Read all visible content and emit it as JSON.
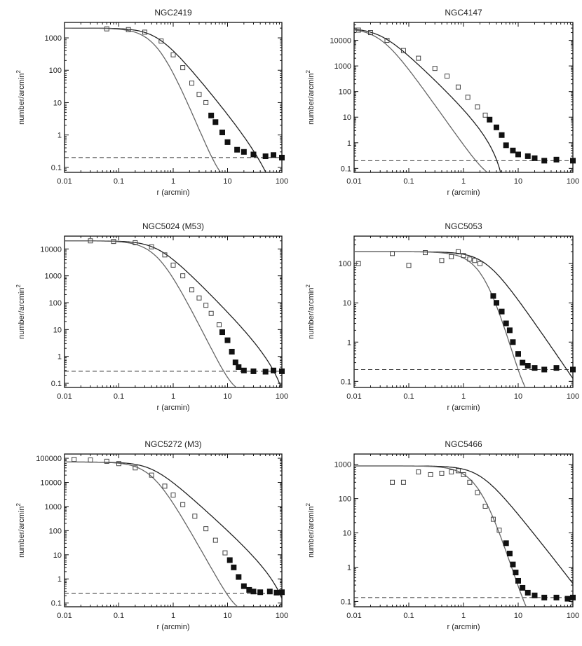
{
  "chart_data": [
    {
      "type": "scatter",
      "title": "NGC2419",
      "xlabel": "r (arcmin)",
      "ylabel": "number/arcmin",
      "ylabel_sup": "2",
      "xscale": "log",
      "yscale": "log",
      "xlim": [
        0.01,
        100
      ],
      "ylim": [
        0.07,
        3000
      ],
      "xticks": [
        {
          "v": 0.01,
          "label": "0.01"
        },
        {
          "v": 0.1,
          "label": "0.1"
        },
        {
          "v": 1,
          "label": "1"
        },
        {
          "v": 10,
          "label": "10"
        },
        {
          "v": 100,
          "label": "100"
        }
      ],
      "yticks": [
        {
          "v": 0.1,
          "label": "0.1"
        },
        {
          "v": 1,
          "label": "1"
        },
        {
          "v": 10,
          "label": "10"
        },
        {
          "v": 100,
          "label": "100"
        },
        {
          "v": 1000,
          "label": "1000"
        }
      ],
      "background": 0.2,
      "r0": 0.5,
      "s0": 2000,
      "inner": 1,
      "outer": 2,
      "slope_model": 4,
      "open_points": [
        [
          0.06,
          1900
        ],
        [
          0.15,
          1800
        ],
        [
          0.3,
          1500
        ],
        [
          0.6,
          800
        ],
        [
          1,
          300
        ],
        [
          1.5,
          120
        ],
        [
          2.2,
          40
        ],
        [
          3,
          18
        ],
        [
          4,
          10
        ]
      ],
      "filled_points": [
        [
          5,
          4
        ],
        [
          6,
          2.5
        ],
        [
          8,
          1.2
        ],
        [
          10,
          0.6
        ],
        [
          15,
          0.35
        ],
        [
          20,
          0.3
        ],
        [
          30,
          0.25
        ],
        [
          50,
          0.22
        ],
        [
          70,
          0.24
        ],
        [
          100,
          0.2
        ]
      ]
    },
    {
      "type": "scatter",
      "title": "NGC4147",
      "xlabel": "r (arcmin)",
      "ylabel": "number/arcmin",
      "ylabel_sup": "2",
      "xscale": "log",
      "yscale": "log",
      "xlim": [
        0.01,
        100
      ],
      "ylim": [
        0.07,
        50000
      ],
      "xticks": [
        {
          "v": 0.01,
          "label": "0.01"
        },
        {
          "v": 0.1,
          "label": "0.1"
        },
        {
          "v": 1,
          "label": "1"
        },
        {
          "v": 10,
          "label": "10"
        },
        {
          "v": 100,
          "label": "100"
        }
      ],
      "yticks": [
        {
          "v": 0.1,
          "label": "0.1"
        },
        {
          "v": 1,
          "label": "1"
        },
        {
          "v": 10,
          "label": "10"
        },
        {
          "v": 100,
          "label": "100"
        },
        {
          "v": 1000,
          "label": "1000"
        },
        {
          "v": 10000,
          "label": "10000"
        }
      ],
      "background": 0.2,
      "r0": 0.03,
      "s0": 30000,
      "inner": 0.8,
      "outer": 2,
      "slope_model": 3,
      "open_points": [
        [
          0.012,
          25000
        ],
        [
          0.02,
          20000
        ],
        [
          0.04,
          10000
        ],
        [
          0.08,
          4000
        ],
        [
          0.15,
          2000
        ],
        [
          0.3,
          800
        ],
        [
          0.5,
          400
        ],
        [
          0.8,
          150
        ],
        [
          1.2,
          60
        ],
        [
          1.8,
          25
        ],
        [
          2.5,
          12
        ]
      ],
      "filled_points": [
        [
          3,
          8
        ],
        [
          4,
          4
        ],
        [
          5,
          2
        ],
        [
          6,
          0.8
        ],
        [
          8,
          0.5
        ],
        [
          10,
          0.35
        ],
        [
          15,
          0.3
        ],
        [
          20,
          0.25
        ],
        [
          30,
          0.2
        ],
        [
          50,
          0.22
        ],
        [
          100,
          0.2
        ]
      ]
    },
    {
      "type": "scatter",
      "title": "NGC5024 (M53)",
      "xlabel": "r (arcmin)",
      "ylabel": "number/arcmin",
      "ylabel_sup": "2",
      "xscale": "log",
      "yscale": "log",
      "xlim": [
        0.01,
        100
      ],
      "ylim": [
        0.07,
        30000
      ],
      "xticks": [
        {
          "v": 0.01,
          "label": "0.01"
        },
        {
          "v": 0.1,
          "label": "0.1"
        },
        {
          "v": 1,
          "label": "1"
        },
        {
          "v": 10,
          "label": "10"
        },
        {
          "v": 100,
          "label": "100"
        }
      ],
      "yticks": [
        {
          "v": 0.1,
          "label": "0.1"
        },
        {
          "v": 1,
          "label": "1"
        },
        {
          "v": 10,
          "label": "10"
        },
        {
          "v": 100,
          "label": "100"
        },
        {
          "v": 1000,
          "label": "1000"
        },
        {
          "v": 10000,
          "label": "10000"
        }
      ],
      "background": 0.28,
      "r0": 0.5,
      "s0": 20000,
      "inner": 1.2,
      "outer": 2,
      "slope_model": 4,
      "open_points": [
        [
          0.03,
          20000
        ],
        [
          0.08,
          19000
        ],
        [
          0.2,
          17000
        ],
        [
          0.4,
          12000
        ],
        [
          0.7,
          6000
        ],
        [
          1,
          2500
        ],
        [
          1.5,
          1000
        ],
        [
          2.2,
          300
        ],
        [
          3,
          150
        ],
        [
          4,
          80
        ],
        [
          5,
          40
        ],
        [
          7,
          15
        ]
      ],
      "filled_points": [
        [
          8,
          8
        ],
        [
          10,
          4
        ],
        [
          12,
          1.5
        ],
        [
          14,
          0.6
        ],
        [
          16,
          0.4
        ],
        [
          20,
          0.3
        ],
        [
          30,
          0.28
        ],
        [
          50,
          0.27
        ],
        [
          70,
          0.3
        ],
        [
          100,
          0.28
        ]
      ]
    },
    {
      "type": "scatter",
      "title": "NGC5053",
      "xlabel": "r (arcmin)",
      "ylabel": "number/arcmin",
      "ylabel_sup": "2",
      "xscale": "log",
      "yscale": "log",
      "xlim": [
        0.01,
        100
      ],
      "ylim": [
        0.07,
        500
      ],
      "xticks": [
        {
          "v": 0.01,
          "label": "0.01"
        },
        {
          "v": 0.1,
          "label": "0.1"
        },
        {
          "v": 1,
          "label": "1"
        },
        {
          "v": 10,
          "label": "10"
        },
        {
          "v": 100,
          "label": "100"
        }
      ],
      "yticks": [
        {
          "v": 0.1,
          "label": "0.1"
        },
        {
          "v": 1,
          "label": "1"
        },
        {
          "v": 10,
          "label": "10"
        },
        {
          "v": 100,
          "label": "100"
        }
      ],
      "background": 0.2,
      "r0": 2.5,
      "s0": 200,
      "inner": 0.4,
      "outer": 3,
      "slope_model": 5,
      "open_points": [
        [
          0.012,
          100
        ],
        [
          0.05,
          180
        ],
        [
          0.1,
          90
        ],
        [
          0.2,
          190
        ],
        [
          0.4,
          120
        ],
        [
          0.6,
          150
        ],
        [
          0.8,
          200
        ],
        [
          1,
          160
        ],
        [
          1.3,
          130
        ],
        [
          1.6,
          120
        ],
        [
          2,
          100
        ]
      ],
      "filled_points": [
        [
          3.5,
          15
        ],
        [
          4,
          10
        ],
        [
          5,
          6
        ],
        [
          6,
          3
        ],
        [
          7,
          2
        ],
        [
          8,
          1
        ],
        [
          10,
          0.5
        ],
        [
          12,
          0.3
        ],
        [
          15,
          0.25
        ],
        [
          20,
          0.22
        ],
        [
          30,
          0.2
        ],
        [
          50,
          0.22
        ],
        [
          100,
          0.2
        ]
      ]
    },
    {
      "type": "scatter",
      "title": "NGC5272 (M3)",
      "xlabel": "r (arcmin)",
      "ylabel": "number/arcmin",
      "ylabel_sup": "2",
      "xscale": "log",
      "yscale": "log",
      "xlim": [
        0.01,
        100
      ],
      "ylim": [
        0.07,
        150000
      ],
      "xticks": [
        {
          "v": 0.01,
          "label": "0.01"
        },
        {
          "v": 0.1,
          "label": "0.1"
        },
        {
          "v": 1,
          "label": "1"
        },
        {
          "v": 10,
          "label": "10"
        },
        {
          "v": 100,
          "label": "100"
        }
      ],
      "yticks": [
        {
          "v": 0.1,
          "label": "0.1"
        },
        {
          "v": 1,
          "label": "1"
        },
        {
          "v": 10,
          "label": "10"
        },
        {
          "v": 100,
          "label": "100"
        },
        {
          "v": 1000,
          "label": "1000"
        },
        {
          "v": 10000,
          "label": "10000"
        },
        {
          "v": 100000,
          "label": "100000"
        }
      ],
      "background": 0.25,
      "r0": 0.4,
      "s0": 70000,
      "inner": 1.5,
      "outer": 2,
      "slope_model": 4,
      "open_points": [
        [
          0.015,
          90000
        ],
        [
          0.03,
          85000
        ],
        [
          0.06,
          75000
        ],
        [
          0.1,
          60000
        ],
        [
          0.2,
          40000
        ],
        [
          0.4,
          20000
        ],
        [
          0.7,
          7000
        ],
        [
          1,
          3000
        ],
        [
          1.5,
          1200
        ],
        [
          2.5,
          400
        ],
        [
          4,
          120
        ],
        [
          6,
          40
        ],
        [
          9,
          12
        ]
      ],
      "filled_points": [
        [
          11,
          6
        ],
        [
          13,
          3
        ],
        [
          16,
          1.2
        ],
        [
          20,
          0.5
        ],
        [
          25,
          0.35
        ],
        [
          30,
          0.3
        ],
        [
          40,
          0.28
        ],
        [
          60,
          0.3
        ],
        [
          80,
          0.27
        ],
        [
          100,
          0.28
        ]
      ]
    },
    {
      "type": "scatter",
      "title": "NGC5466",
      "xlabel": "r (arcmin)",
      "ylabel": "number/arcmin",
      "ylabel_sup": "2",
      "xscale": "log",
      "yscale": "log",
      "xlim": [
        0.01,
        100
      ],
      "ylim": [
        0.07,
        2000
      ],
      "xticks": [
        {
          "v": 0.01,
          "label": "0.01"
        },
        {
          "v": 0.1,
          "label": "0.1"
        },
        {
          "v": 1,
          "label": "1"
        },
        {
          "v": 10,
          "label": "10"
        },
        {
          "v": 100,
          "label": "100"
        }
      ],
      "yticks": [
        {
          "v": 0.1,
          "label": "0.1"
        },
        {
          "v": 1,
          "label": "1"
        },
        {
          "v": 10,
          "label": "10"
        },
        {
          "v": 100,
          "label": "100"
        },
        {
          "v": 1000,
          "label": "1000"
        }
      ],
      "background": 0.13,
      "r0": 2,
      "s0": 900,
      "inner": 0.3,
      "outer": 3,
      "slope_model": 5,
      "open_points": [
        [
          0.05,
          300
        ],
        [
          0.08,
          300
        ],
        [
          0.15,
          600
        ],
        [
          0.25,
          500
        ],
        [
          0.4,
          550
        ],
        [
          0.6,
          600
        ],
        [
          0.8,
          650
        ],
        [
          1,
          500
        ],
        [
          1.3,
          300
        ],
        [
          1.8,
          150
        ],
        [
          2.5,
          60
        ],
        [
          3.5,
          25
        ],
        [
          4.5,
          12
        ]
      ],
      "filled_points": [
        [
          6,
          5
        ],
        [
          7,
          2.5
        ],
        [
          8,
          1.2
        ],
        [
          9,
          0.7
        ],
        [
          10,
          0.4
        ],
        [
          12,
          0.25
        ],
        [
          15,
          0.18
        ],
        [
          20,
          0.15
        ],
        [
          30,
          0.13
        ],
        [
          50,
          0.13
        ],
        [
          80,
          0.12
        ],
        [
          100,
          0.13
        ]
      ]
    }
  ]
}
